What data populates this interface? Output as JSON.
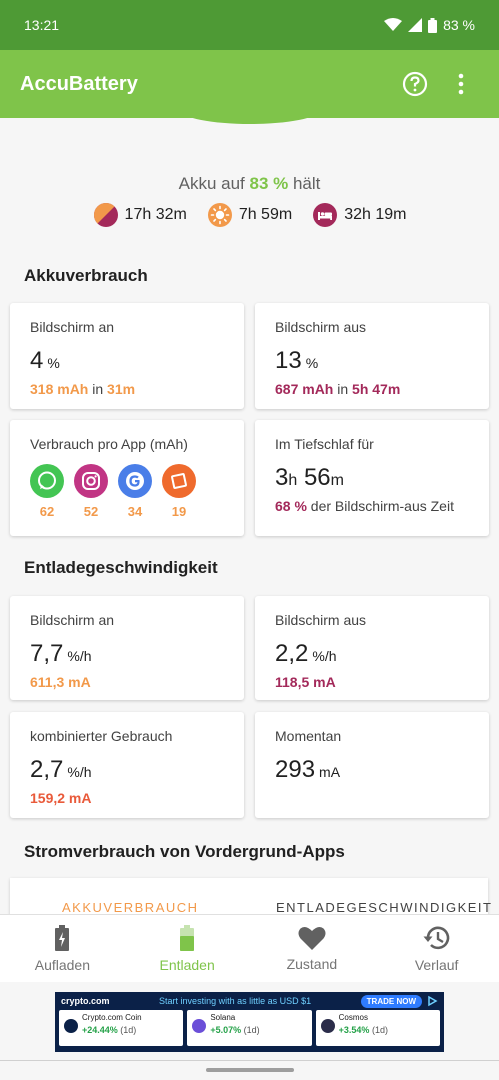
{
  "status": {
    "time": "13:21",
    "battery": "83 %"
  },
  "app": {
    "title": "AccuBattery"
  },
  "hold": {
    "prefix": "Akku auf ",
    "percent": "83 %",
    "suffix": " hält"
  },
  "estimates": {
    "mixed": "17h 32m",
    "screen_on": "7h 59m",
    "sleep": "32h 19m"
  },
  "section1": {
    "title": "Akkuverbrauch"
  },
  "usage": {
    "screen_on": {
      "label": "Bildschirm an",
      "value": "4",
      "unit": "%",
      "mah": "318 mAh",
      "in": " in ",
      "time": "31m"
    },
    "screen_off": {
      "label": "Bildschirm aus",
      "value": "13",
      "unit": "%",
      "mah": "687 mAh",
      "in": " in ",
      "time": "5h 47m"
    },
    "per_app": {
      "label": "Verbrauch pro App (mAh)",
      "apps": [
        {
          "icon": "whatsapp-icon",
          "value": "62"
        },
        {
          "icon": "instagram-icon",
          "value": "52"
        },
        {
          "icon": "google-icon",
          "value": "34"
        },
        {
          "icon": "app-icon",
          "value": "19"
        }
      ]
    },
    "deep_sleep": {
      "label": "Im Tiefschlaf für",
      "hours": "3",
      "h": "h",
      "minutes": "56",
      "m": "m",
      "pct": "68 %",
      "rest": " der Bildschirm-aus Zeit"
    }
  },
  "section2": {
    "title": "Entladegeschwindigkeit"
  },
  "discharge": {
    "screen_on": {
      "label": "Bildschirm an",
      "value": "7,7",
      "unit": "%/h",
      "sub": "611,3 mA"
    },
    "screen_off": {
      "label": "Bildschirm aus",
      "value": "2,2",
      "unit": "%/h",
      "sub": "118,5 mA"
    },
    "combined": {
      "label": "kombinierter Gebrauch",
      "value": "2,7",
      "unit": "%/h",
      "sub": "159,2 mA"
    },
    "current": {
      "label": "Momentan",
      "value": "293",
      "unit": "mA"
    }
  },
  "section3": {
    "title": "Stromverbrauch von Vordergrund-Apps"
  },
  "tabs": {
    "left": "AKKUVERBRAUCH",
    "right": "ENTLADEGESCHWINDIGKEIT"
  },
  "nav": [
    {
      "label": "Aufladen"
    },
    {
      "label": "Entladen"
    },
    {
      "label": "Zustand"
    },
    {
      "label": "Verlauf"
    }
  ],
  "ad": {
    "brand": "crypto.com",
    "slogan": "Start investing with as little as USD $1",
    "cta": "TRADE NOW",
    "coins": [
      {
        "name": "Crypto.com Coin",
        "change": "+24.44%",
        "period": "(1d)"
      },
      {
        "name": "Solana",
        "change": "+5.07%",
        "period": "(1d)"
      },
      {
        "name": "Cosmos",
        "change": "+3.54%",
        "period": "(1d)"
      }
    ]
  },
  "colors": {
    "accent": "#7fc44a",
    "statusbar": "#4e9a35",
    "orange": "#f2994a",
    "plum": "#a3295a",
    "red": "#e95a3a"
  }
}
